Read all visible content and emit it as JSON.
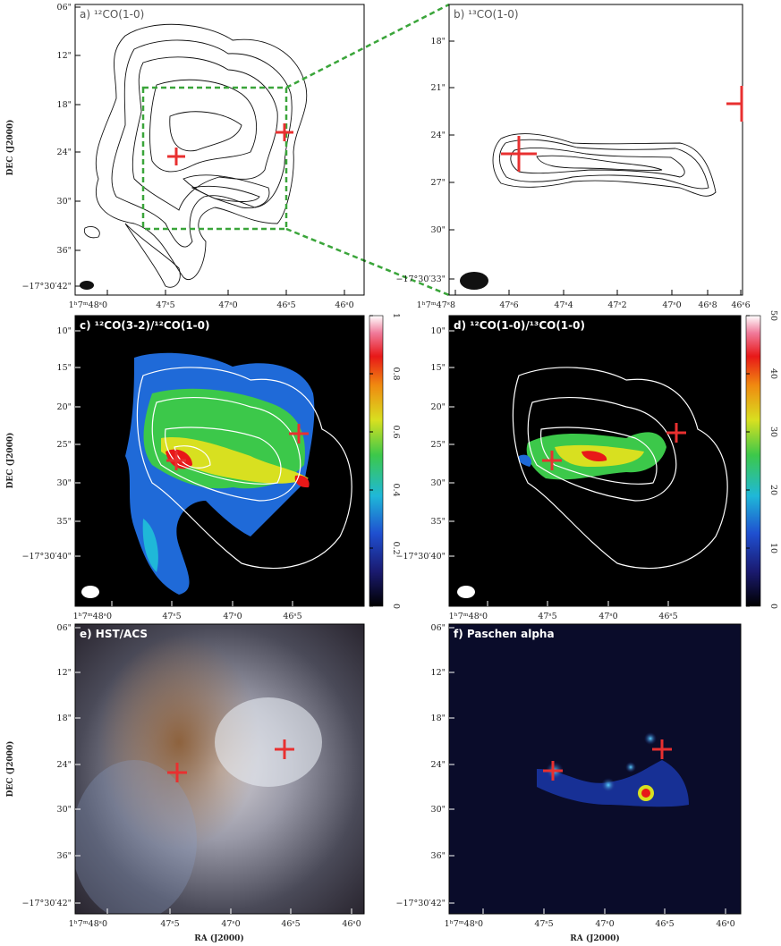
{
  "axis_labels": {
    "y": "DEC (J2000)",
    "x": "RA (J2000)"
  },
  "panels": [
    {
      "label": "a) ¹²CO(1-0)",
      "yticks": [
        "06\"",
        "12\"",
        "18\"",
        "24\"",
        "30\"",
        "36\"",
        "−17°30′42\""
      ],
      "xticks": [
        "1ʰ7ᵐ48ˢ0",
        "47ˢ5",
        "47ˢ0",
        "46ˢ5",
        "46ˢ0"
      ]
    },
    {
      "label": "b) ¹³CO(1-0)",
      "yticks": [
        "18\"",
        "21\"",
        "24\"",
        "27\"",
        "30\"",
        "−17°30′33\""
      ],
      "xticks": [
        "1ʰ7ᵐ47ˢ8",
        "47ˢ6",
        "47ˢ4",
        "47ˢ2",
        "47ˢ0",
        "46ˢ8",
        "46ˢ6"
      ]
    },
    {
      "label": "c) ¹²CO(3-2)/¹²CO(1-0)",
      "yticks": [
        "10\"",
        "15\"",
        "20\"",
        "25\"",
        "30\"",
        "35\"",
        "−17°30′40\""
      ],
      "xticks": [
        "1ʰ7ᵐ48ˢ0",
        "47ˢ5",
        "47ˢ0",
        "46ˢ5"
      ],
      "colorbar_ticks": [
        0,
        0.2,
        0.4,
        0.6,
        0.8,
        1
      ]
    },
    {
      "label": "d) ¹²CO(1-0)/¹³CO(1-0)",
      "yticks": [
        "10\"",
        "15\"",
        "20\"",
        "25\"",
        "30\"",
        "35\"",
        "−17°30′40\""
      ],
      "xticks": [
        "1ʰ7ᵐ48ˢ0",
        "47ˢ5",
        "47ˢ0",
        "46ˢ5"
      ],
      "colorbar_ticks": [
        0,
        10,
        20,
        30,
        40,
        50
      ]
    },
    {
      "label": "e) HST/ACS",
      "yticks": [
        "06\"",
        "12\"",
        "18\"",
        "24\"",
        "30\"",
        "36\"",
        "−17°30′42\""
      ],
      "xticks": [
        "1ʰ7ᵐ48ˢ0",
        "47ˢ5",
        "47ˢ0",
        "46ˢ5",
        "46ˢ0"
      ]
    },
    {
      "label": "f) Paschen alpha",
      "yticks": [
        "06\"",
        "12\"",
        "18\"",
        "24\"",
        "30\"",
        "36\"",
        "−17°30′42\""
      ],
      "xticks": [
        "1ʰ7ᵐ48ˢ0",
        "47ˢ5",
        "47ˢ0",
        "46ˢ5",
        "46ˢ0"
      ]
    }
  ]
}
